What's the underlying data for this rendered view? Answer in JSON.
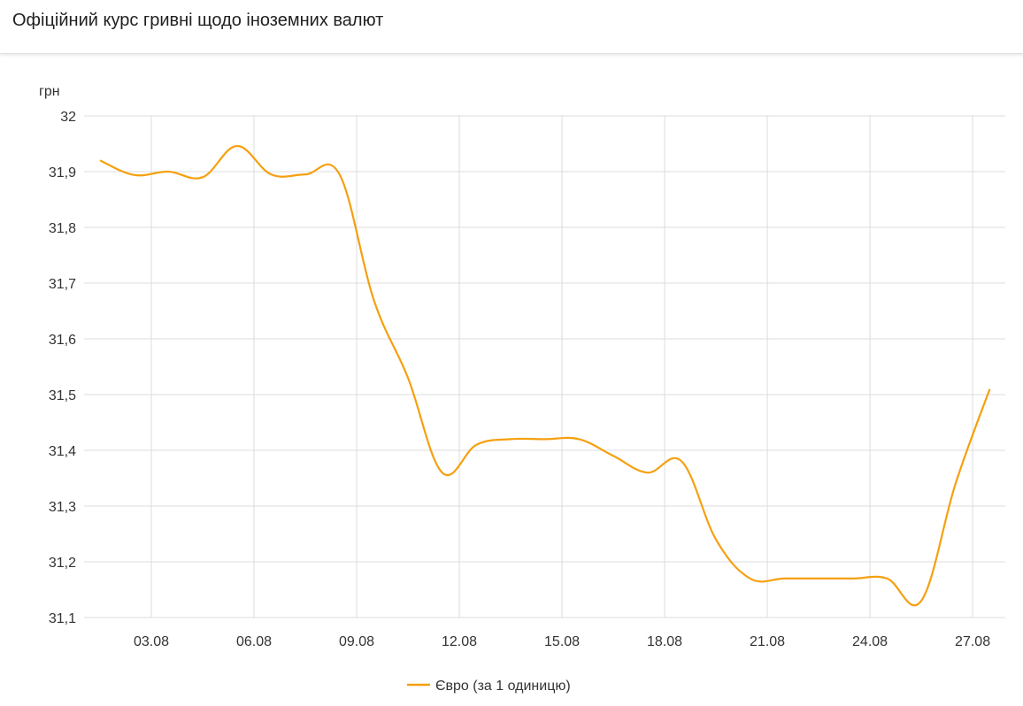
{
  "header": {
    "title": "Офіційний курс гривні щодо іноземних валют"
  },
  "chart_data": {
    "type": "line",
    "title": "",
    "ylabel": "грн",
    "xlabel": "",
    "ylim": [
      31.1,
      32
    ],
    "yticks": [
      "31,1",
      "31,2",
      "31,3",
      "31,4",
      "31,5",
      "31,6",
      "31,7",
      "31,8",
      "31,9",
      "32"
    ],
    "xticks": [
      "03.08",
      "06.08",
      "09.08",
      "12.08",
      "15.08",
      "18.08",
      "21.08",
      "24.08",
      "27.08"
    ],
    "grid": true,
    "legend": "bottom",
    "x": [
      "01.08",
      "02.08",
      "03.08",
      "04.08",
      "05.08",
      "06.08",
      "07.08",
      "08.08",
      "09.08",
      "10.08",
      "11.08",
      "12.08",
      "13.08",
      "14.08",
      "15.08",
      "16.08",
      "17.08",
      "18.08",
      "19.08",
      "20.08",
      "21.08",
      "22.08",
      "23.08",
      "24.08",
      "25.08",
      "26.08",
      "27.08"
    ],
    "series": [
      {
        "name": "Євро (за 1 одиницю)",
        "color": "#f5a00f",
        "values": [
          31.92,
          31.894,
          31.9,
          31.89,
          31.946,
          31.895,
          31.895,
          31.895,
          31.67,
          31.53,
          31.36,
          31.41,
          31.42,
          31.42,
          31.42,
          31.39,
          31.36,
          31.38,
          31.24,
          31.17,
          31.17,
          31.17,
          31.17,
          31.17,
          31.13,
          31.34,
          31.51
        ]
      }
    ]
  }
}
